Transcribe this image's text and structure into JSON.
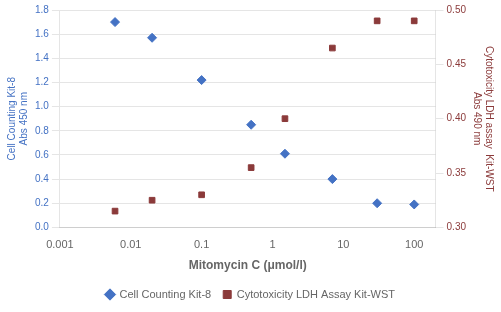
{
  "chart_data": {
    "type": "scatter",
    "x": [
      0.006,
      0.02,
      0.1,
      0.5,
      1.5,
      7,
      30,
      100
    ],
    "series": [
      {
        "name": "Cell Counting Kit-8",
        "color": "#4472C4",
        "marker": "diamond",
        "values": [
          1.7,
          1.57,
          1.22,
          0.85,
          0.61,
          0.4,
          0.2,
          0.19
        ]
      },
      {
        "name": "Cytotoxicity LDH Assay Kit-WST",
        "color": "#8B3A3A",
        "marker": "square",
        "axis": "y2",
        "values": [
          0.315,
          0.325,
          0.33,
          0.355,
          0.4,
          0.465,
          0.49,
          0.49
        ]
      }
    ],
    "xlabel": "Mitomycin C (μmol/l)",
    "ylabel": "Cell Counting Kit-8\nAbs 450 nm",
    "y2label": "Cytotoxicity LDH assay  Kit-WST\nAbs 490 nm",
    "log": "x",
    "xlim": [
      0.001,
      200
    ],
    "xticks": [
      0.001,
      0.01,
      0.1,
      1,
      10,
      100
    ],
    "ylim": [
      0.0,
      1.8
    ],
    "yticks": [
      {
        "value": 0.0,
        "label": "0.0"
      },
      0.2,
      0.4,
      0.6,
      0.8,
      {
        "value": 1.0,
        "label": "1.0"
      },
      1.2,
      1.4,
      1.6,
      1.8
    ],
    "y2lim": [
      0.3,
      0.5
    ],
    "y2ticks": [
      {
        "value": 0.3,
        "label": "0.30"
      },
      {
        "value": 0.35,
        "label": "0.35"
      },
      {
        "value": 0.4,
        "label": "0.40"
      },
      {
        "value": 0.45,
        "label": "0.45"
      },
      {
        "value": 0.5,
        "label": "0.50"
      }
    ],
    "grid": "y",
    "legend": "bottom"
  }
}
